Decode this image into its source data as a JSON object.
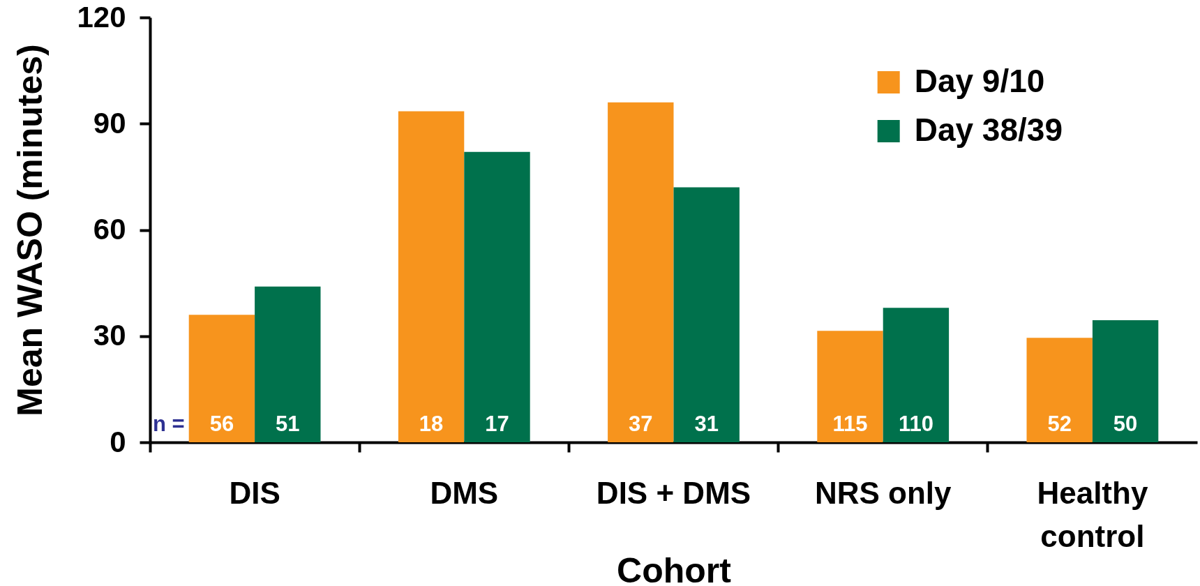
{
  "chart_data": {
    "type": "bar",
    "categories": [
      "DIS",
      "DMS",
      "DIS + DMS",
      "NRS only",
      "Healthy control"
    ],
    "series": [
      {
        "name": "Day 9/10",
        "color": "#f7941d",
        "values": [
          36,
          93.5,
          96,
          31.5,
          29.5
        ]
      },
      {
        "name": "Day 38/39",
        "color": "#00714c",
        "values": [
          44,
          82,
          72,
          38,
          34.5
        ]
      }
    ],
    "xlabel": "Cohort",
    "ylabel": "Mean WASO (minutes)",
    "ylim": [
      0,
      120
    ],
    "yticks": [
      0,
      30,
      60,
      90,
      120
    ],
    "grid": false,
    "legend": "top right",
    "annotations": [
      "n =",
      {
        "text": "56",
        "x": "DIS",
        "y": 5
      },
      {
        "text": "51",
        "x": "DIS",
        "y": 5
      },
      {
        "text": "18",
        "x": "DMS",
        "y": 5
      },
      {
        "text": "17",
        "x": "DMS",
        "y": 5
      },
      {
        "text": "37",
        "x": "DIS + DMS",
        "y": 5
      },
      {
        "text": "31",
        "x": "DIS + DMS",
        "y": 5
      },
      {
        "text": "115",
        "x": "NRS only",
        "y": 5
      },
      {
        "text": "110",
        "x": "NRS only",
        "y": 5
      },
      {
        "text": "52",
        "x": "Healthy control",
        "y": 5
      },
      {
        "text": "50",
        "x": "Healthy control",
        "y": 5
      }
    ]
  }
}
